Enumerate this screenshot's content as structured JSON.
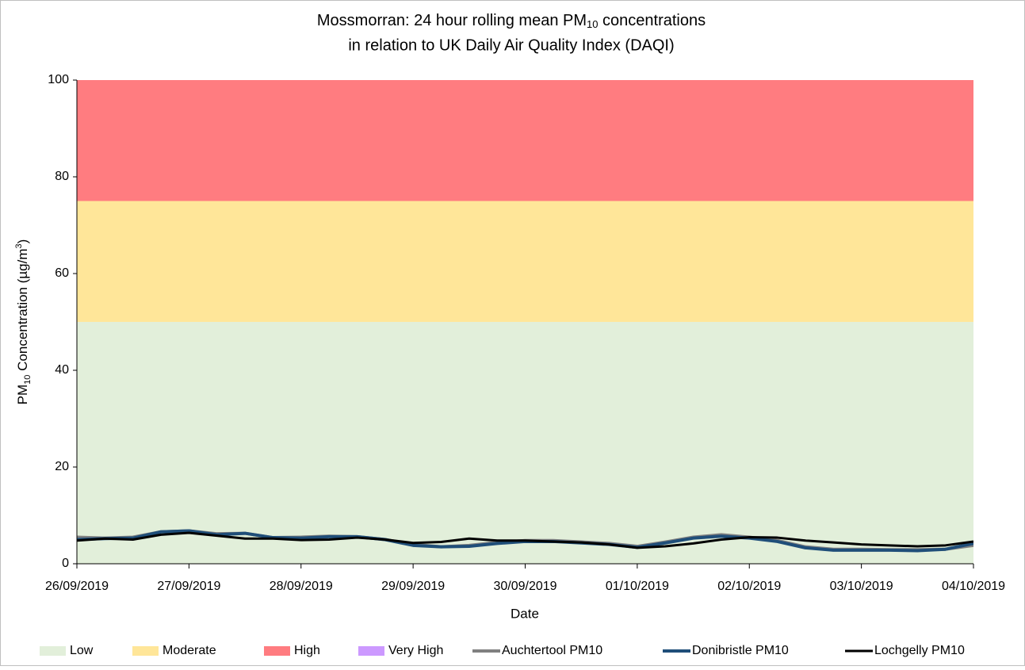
{
  "chart_data": {
    "type": "line",
    "title_line1": [
      "Mossmorran: 24 hour rolling mean PM",
      "10",
      " concentrations"
    ],
    "title_line2": "in relation to UK Daily Air Quality Index (DAQI)",
    "y_label": [
      "PM",
      "10",
      " Concentration (µg/m",
      "3",
      ")"
    ],
    "x_label": "Date",
    "ylim": [
      0,
      100
    ],
    "yticks": [
      0,
      20,
      40,
      60,
      80,
      100
    ],
    "xlim": [
      0,
      8
    ],
    "xticks": [
      {
        "value": 0,
        "label": "26/09/2019"
      },
      {
        "value": 1,
        "label": "27/09/2019"
      },
      {
        "value": 2,
        "label": "28/09/2019"
      },
      {
        "value": 3,
        "label": "29/09/2019"
      },
      {
        "value": 4,
        "label": "30/09/2019"
      },
      {
        "value": 5,
        "label": "01/10/2019"
      },
      {
        "value": 6,
        "label": "02/10/2019"
      },
      {
        "value": 7,
        "label": "03/10/2019"
      },
      {
        "value": 8,
        "label": "04/10/2019"
      }
    ],
    "bands": [
      {
        "name": "Low",
        "color": "#e2efda",
        "value": 50
      },
      {
        "name": "Moderate",
        "color": "#ffe699",
        "value": 25
      },
      {
        "name": "High",
        "color": "#ff7c80",
        "value": 25
      },
      {
        "name": "Very High",
        "color": "#cc99ff",
        "value": null
      }
    ],
    "x": [
      0,
      0.25,
      0.5,
      0.75,
      1,
      1.25,
      1.5,
      1.75,
      2,
      2.25,
      2.5,
      2.75,
      3,
      3.25,
      3.5,
      3.75,
      4,
      4.25,
      4.5,
      4.75,
      5,
      5.25,
      5.5,
      5.75,
      6,
      6.25,
      6.5,
      6.75,
      7,
      7.25,
      7.5,
      7.75,
      8
    ],
    "series": [
      {
        "name": "Auchtertool PM10",
        "color": "#808080",
        "width": 4,
        "values": [
          5.5,
          5.3,
          5.5,
          6.6,
          6.8,
          6.2,
          6.3,
          5.4,
          5.5,
          5.7,
          5.6,
          5.0,
          4.0,
          3.5,
          3.8,
          4.4,
          4.8,
          4.8,
          4.5,
          4.2,
          3.6,
          4.5,
          5.5,
          6.0,
          5.5,
          4.8,
          3.5,
          3.0,
          3.0,
          2.9,
          2.9,
          3.0,
          3.8
        ]
      },
      {
        "name": "Donibristle PM10",
        "color": "#1f4e79",
        "width": 4,
        "values": [
          5.0,
          5.2,
          5.3,
          6.6,
          6.8,
          6.0,
          6.3,
          5.4,
          5.3,
          5.6,
          5.6,
          5.0,
          3.8,
          3.5,
          3.6,
          4.2,
          4.6,
          4.6,
          4.3,
          4.0,
          3.4,
          4.3,
          5.3,
          5.7,
          5.3,
          4.6,
          3.3,
          2.8,
          2.8,
          2.8,
          2.7,
          3.0,
          4.2
        ]
      },
      {
        "name": "Lochgelly PM10",
        "color": "#000000",
        "width": 3,
        "values": [
          4.8,
          5.2,
          5.0,
          6.0,
          6.4,
          5.8,
          5.2,
          5.2,
          4.9,
          5.0,
          5.4,
          5.0,
          4.3,
          4.5,
          5.2,
          4.8,
          4.8,
          4.6,
          4.4,
          4.0,
          3.3,
          3.6,
          4.2,
          5.0,
          5.5,
          5.4,
          4.8,
          4.4,
          4.0,
          3.8,
          3.6,
          3.8,
          4.6
        ]
      }
    ]
  }
}
